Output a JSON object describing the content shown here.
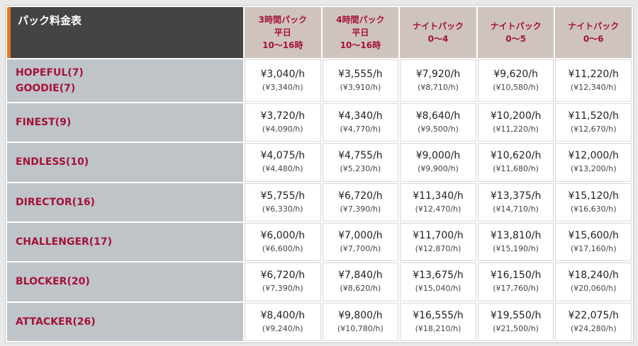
{
  "table": {
    "title": "パック料金表",
    "columns": [
      {
        "lines": [
          "3時間パック",
          "平日",
          "10～16時"
        ]
      },
      {
        "lines": [
          "4時間パック",
          "平日",
          "10～16時"
        ]
      },
      {
        "lines": [
          "ナイトパック",
          "0～4"
        ]
      },
      {
        "lines": [
          "ナイトパック",
          "0～5"
        ]
      },
      {
        "lines": [
          "ナイトパック",
          "0～6"
        ]
      }
    ],
    "rows": [
      {
        "names": [
          "HOPEFUL(7)",
          "GOODIE(7)"
        ],
        "prices": [
          {
            "main": "¥3,040/h",
            "sub": "(¥3,340/h)"
          },
          {
            "main": "¥3,555/h",
            "sub": "(¥3,910/h)"
          },
          {
            "main": "¥7,920/h",
            "sub": "(¥8,710/h)"
          },
          {
            "main": "¥9,620/h",
            "sub": "(¥10,580/h)"
          },
          {
            "main": "¥11,220/h",
            "sub": "(¥12,340/h)"
          }
        ]
      },
      {
        "names": [
          "FINEST(9)"
        ],
        "prices": [
          {
            "main": "¥3,720/h",
            "sub": "(¥4,090/h)"
          },
          {
            "main": "¥4,340/h",
            "sub": "(¥4,770/h)"
          },
          {
            "main": "¥8,640/h",
            "sub": "(¥9,500/h)"
          },
          {
            "main": "¥10,200/h",
            "sub": "(¥11,220/h)"
          },
          {
            "main": "¥11,520/h",
            "sub": "(¥12,670/h)"
          }
        ]
      },
      {
        "names": [
          "ENDLESS(10)"
        ],
        "prices": [
          {
            "main": "¥4,075/h",
            "sub": "(¥4,480/h)"
          },
          {
            "main": "¥4,755/h",
            "sub": "(¥5,230/h)"
          },
          {
            "main": "¥9,000/h",
            "sub": "(¥9,900/h)"
          },
          {
            "main": "¥10,620/h",
            "sub": "(¥11,680/h)"
          },
          {
            "main": "¥12,000/h",
            "sub": "(¥13,200/h)"
          }
        ]
      },
      {
        "names": [
          "DIRECTOR(16)"
        ],
        "prices": [
          {
            "main": "¥5,755/h",
            "sub": "(¥6,330/h)"
          },
          {
            "main": "¥6,720/h",
            "sub": "(¥7,390/h)"
          },
          {
            "main": "¥11,340/h",
            "sub": "(¥12,470/h)"
          },
          {
            "main": "¥13,375/h",
            "sub": "(¥14,710/h)"
          },
          {
            "main": "¥15,120/h",
            "sub": "(¥16,630/h)"
          }
        ]
      },
      {
        "names": [
          "CHALLENGER(17)"
        ],
        "prices": [
          {
            "main": "¥6,000/h",
            "sub": "(¥6,600/h)"
          },
          {
            "main": "¥7,000/h",
            "sub": "(¥7,700/h)"
          },
          {
            "main": "¥11,700/h",
            "sub": "(¥12,870/h)"
          },
          {
            "main": "¥13,810/h",
            "sub": "(¥15,190/h)"
          },
          {
            "main": "¥15,600/h",
            "sub": "(¥17,160/h)"
          }
        ]
      },
      {
        "names": [
          "BLOCKER(20)"
        ],
        "prices": [
          {
            "main": "¥6,720/h",
            "sub": "(¥7,390/h)"
          },
          {
            "main": "¥7,840/h",
            "sub": "(¥8,620/h)"
          },
          {
            "main": "¥13,675/h",
            "sub": "(¥15,040/h)"
          },
          {
            "main": "¥16,150/h",
            "sub": "(¥17,760/h)"
          },
          {
            "main": "¥18,240/h",
            "sub": "(¥20,060/h)"
          }
        ]
      },
      {
        "names": [
          "ATTACKER(26)"
        ],
        "prices": [
          {
            "main": "¥8,400/h",
            "sub": "(¥9,240/h)"
          },
          {
            "main": "¥9,800/h",
            "sub": "(¥10,780/h)"
          },
          {
            "main": "¥16,555/h",
            "sub": "(¥18,210/h)"
          },
          {
            "main": "¥19,550/h",
            "sub": "(¥21,500/h)"
          },
          {
            "main": "¥22,075/h",
            "sub": "(¥24,280/h)"
          }
        ]
      }
    ]
  },
  "colors": {
    "header_dark": "#444444",
    "accent_orange": "#e87722",
    "header_col_bg": "#cfc4bd",
    "label_color": "#a3123a",
    "name_bg": "#bfc4c9"
  }
}
